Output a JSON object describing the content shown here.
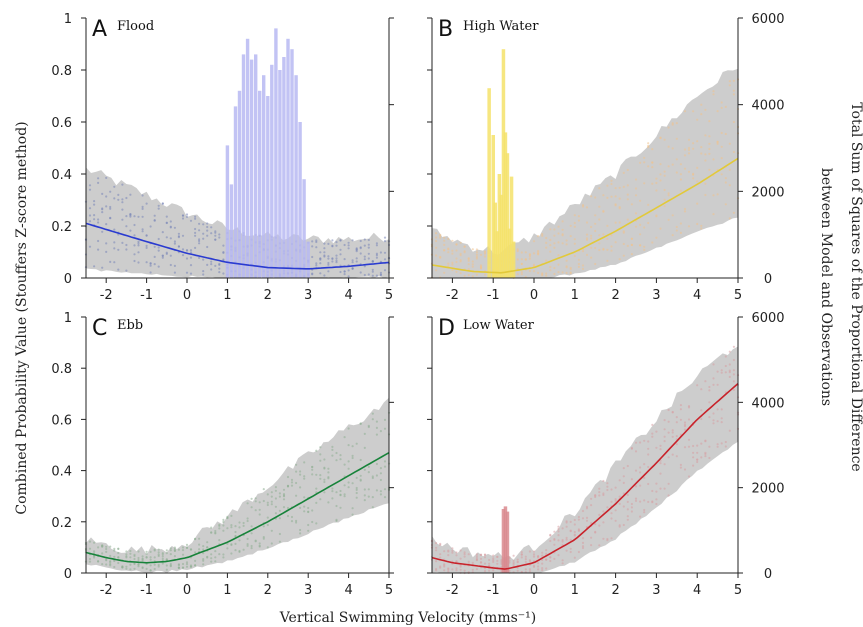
{
  "figure": {
    "ylabel_left": "Combined Probability Value (Stouffers Z-score method)",
    "ylabel_right_line1": "Total Sum of Squares of the Proportional Difference",
    "ylabel_right_line2": "between Model and Observations",
    "xlabel": "Vertical Swimming Velocity (mms⁻¹)"
  },
  "chart_data": [
    {
      "panel": "A",
      "title": "Flood",
      "type": "bar",
      "xlim": [
        -2.5,
        5
      ],
      "ylim": [
        0,
        1
      ],
      "xticks": [
        -2,
        -1,
        0,
        1,
        2,
        3,
        4,
        5
      ],
      "yticks": [
        0,
        0.2,
        0.4,
        0.6,
        0.8,
        1
      ],
      "y2lim": [
        0,
        6000
      ],
      "color": "#2a3bd0",
      "bar_color": "#b7b9f2",
      "scatter_color": "#7a86b8",
      "fit_curve": {
        "x": [
          -2.5,
          -1,
          0,
          1,
          2,
          3,
          4,
          5
        ],
        "y": [
          0.21,
          0.14,
          0.095,
          0.06,
          0.04,
          0.035,
          0.045,
          0.06
        ]
      },
      "band": {
        "upper": [
          0.42,
          0.32,
          0.25,
          0.19,
          0.16,
          0.15,
          0.15,
          0.16
        ],
        "lower": [
          0.04,
          0.02,
          0.01,
          0.005,
          0.005,
          0.005,
          0.005,
          0.01
        ]
      },
      "bars": {
        "x": [
          1.0,
          1.1,
          1.2,
          1.3,
          1.4,
          1.5,
          1.6,
          1.7,
          1.8,
          1.9,
          2.0,
          2.1,
          2.2,
          2.3,
          2.4,
          2.5,
          2.6,
          2.7,
          2.8,
          2.9,
          3.0
        ],
        "y": [
          0.51,
          0.36,
          0.66,
          0.72,
          0.86,
          0.92,
          0.84,
          0.86,
          0.72,
          0.78,
          0.7,
          0.82,
          0.96,
          0.8,
          0.85,
          0.92,
          0.88,
          0.78,
          0.6,
          0.38,
          0.14
        ]
      }
    },
    {
      "panel": "B",
      "title": "High Water",
      "type": "bar",
      "xlim": [
        -2.5,
        5
      ],
      "ylim": [
        0,
        1
      ],
      "xticks": [
        -2,
        -1,
        0,
        1,
        2,
        3,
        4,
        5
      ],
      "y2lim": [
        0,
        6000
      ],
      "y2ticks": [
        0,
        2000,
        4000,
        6000
      ],
      "color": "#e2c93a",
      "bar_color": "#f5e26a",
      "scatter_color": "#f0c38e",
      "fit_curve": {
        "x": [
          -2.5,
          -1.5,
          -0.8,
          0,
          1,
          2,
          3,
          4,
          5
        ],
        "y": [
          0.05,
          0.025,
          0.02,
          0.04,
          0.1,
          0.18,
          0.27,
          0.36,
          0.46
        ]
      },
      "band": {
        "upper": [
          0.18,
          0.12,
          0.1,
          0.16,
          0.28,
          0.4,
          0.55,
          0.7,
          0.82
        ],
        "lower": [
          0.0,
          0.0,
          0.0,
          0.0,
          0.02,
          0.06,
          0.12,
          0.18,
          0.24
        ]
      },
      "bars": {
        "x": [
          -1.1,
          -1.0,
          -0.95,
          -0.9,
          -0.85,
          -0.8,
          -0.75,
          -0.7,
          -0.65,
          -0.6,
          -0.55,
          -0.5
        ],
        "y": [
          0.73,
          0.55,
          0.29,
          0.18,
          0.4,
          0.32,
          0.88,
          0.56,
          0.48,
          0.19,
          0.39,
          0.14
        ]
      }
    },
    {
      "panel": "C",
      "title": "Ebb",
      "type": "line",
      "xlim": [
        -2.5,
        5
      ],
      "ylim": [
        0,
        1
      ],
      "xticks": [
        -2,
        -1,
        0,
        1,
        2,
        3,
        4,
        5
      ],
      "yticks": [
        0,
        0.2,
        0.4,
        0.6,
        0.8,
        1
      ],
      "y2lim": [
        0,
        6000
      ],
      "color": "#17833a",
      "scatter_color": "#8fae94",
      "fit_curve": {
        "x": [
          -2.5,
          -2,
          -1.5,
          -1,
          -0.5,
          0,
          1,
          2,
          3,
          4,
          5
        ],
        "y": [
          0.08,
          0.06,
          0.045,
          0.04,
          0.045,
          0.06,
          0.12,
          0.2,
          0.29,
          0.38,
          0.47
        ]
      },
      "band": {
        "upper": [
          0.13,
          0.11,
          0.09,
          0.09,
          0.1,
          0.12,
          0.22,
          0.34,
          0.46,
          0.57,
          0.67
        ],
        "lower": [
          0.04,
          0.025,
          0.015,
          0.01,
          0.01,
          0.02,
          0.05,
          0.1,
          0.16,
          0.22,
          0.28
        ]
      }
    },
    {
      "panel": "D",
      "title": "Low Water",
      "type": "line",
      "xlim": [
        -2.5,
        5
      ],
      "ylim": [
        0,
        1
      ],
      "xticks": [
        -2,
        -1,
        0,
        1,
        2,
        3,
        4,
        5
      ],
      "y2lim": [
        0,
        6000
      ],
      "y2ticks": [
        0,
        2000,
        4000,
        6000
      ],
      "color": "#c8222a",
      "bar_color": "#d98a8e",
      "scatter_color": "#d7a0a4",
      "fit_curve": {
        "x": [
          -2.5,
          -2,
          -1.5,
          -1,
          -0.7,
          0,
          1,
          2,
          3,
          4,
          5
        ],
        "y": [
          0.06,
          0.04,
          0.03,
          0.02,
          0.015,
          0.04,
          0.13,
          0.27,
          0.43,
          0.6,
          0.74
        ]
      },
      "band": {
        "upper": [
          0.13,
          0.1,
          0.08,
          0.07,
          0.06,
          0.1,
          0.24,
          0.42,
          0.6,
          0.77,
          0.9
        ],
        "lower": [
          0.01,
          0.0,
          0.0,
          0.0,
          0.0,
          0.0,
          0.05,
          0.14,
          0.26,
          0.4,
          0.52
        ]
      },
      "bars": {
        "x": [
          -0.75,
          -0.7,
          -0.65
        ],
        "y": [
          0.25,
          0.26,
          0.24
        ]
      }
    }
  ]
}
